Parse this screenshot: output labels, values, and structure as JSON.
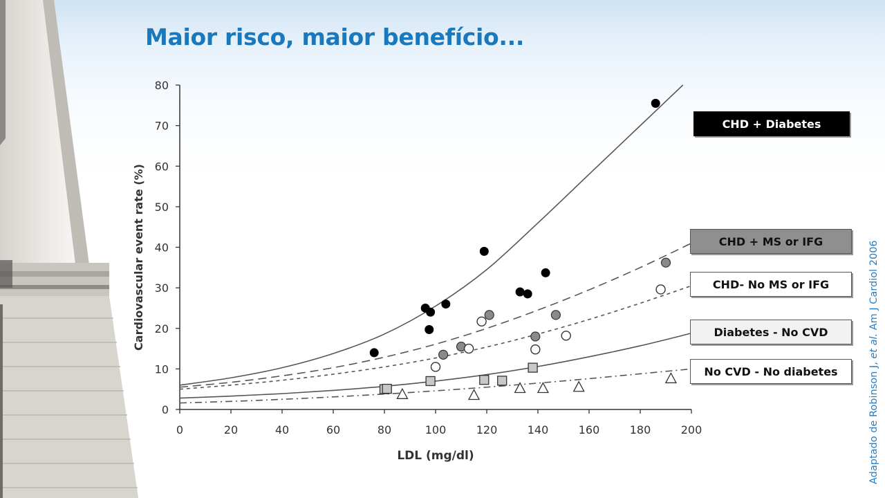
{
  "slide": {
    "title": "Maior risco, maior benefício...",
    "source_prefix": "Adaptado de Robinson J, ",
    "source_italic": "et al.",
    "source_suffix": "  Am J Cardiol 2006"
  },
  "chart_data": {
    "type": "scatter",
    "title": "",
    "xlabel": "LDL (mg/dl)",
    "ylabel": "Cardiovascular event rate (%)",
    "xlim": [
      0,
      200
    ],
    "ylim": [
      0,
      80
    ],
    "xticks": [
      0,
      20,
      40,
      60,
      80,
      100,
      120,
      140,
      160,
      180,
      200
    ],
    "yticks": [
      0,
      10,
      20,
      30,
      40,
      50,
      60,
      70,
      80
    ],
    "grid": false,
    "legend_position": "right",
    "series": [
      {
        "name": "CHD + Diabetes",
        "marker": "filled-circle",
        "color": "#000000",
        "line_style": "solid",
        "points": [
          [
            76,
            14
          ],
          [
            96,
            25
          ],
          [
            98,
            24
          ],
          [
            97.5,
            19.7
          ],
          [
            104,
            26
          ],
          [
            119,
            39
          ],
          [
            133,
            29
          ],
          [
            136,
            28.5
          ],
          [
            143,
            33.7
          ],
          [
            186,
            75.5
          ]
        ],
        "fit": [
          [
            0,
            6
          ],
          [
            20,
            7.8
          ],
          [
            40,
            10.3
          ],
          [
            60,
            13.8
          ],
          [
            80,
            18.6
          ],
          [
            100,
            25.5
          ],
          [
            120,
            34.5
          ],
          [
            140,
            46
          ],
          [
            160,
            58
          ],
          [
            180,
            70
          ],
          [
            200,
            82
          ]
        ]
      },
      {
        "name": "CHD + MS or IFG",
        "marker": "gray-circle",
        "color": "#8a8a8a",
        "line_style": "long-dash",
        "points": [
          [
            103,
            13.5
          ],
          [
            110,
            15.5
          ],
          [
            121,
            23.3
          ],
          [
            139,
            18
          ],
          [
            147,
            23.3
          ],
          [
            190,
            36.2
          ]
        ],
        "fit": [
          [
            0,
            5.5
          ],
          [
            20,
            6.7
          ],
          [
            40,
            8.3
          ],
          [
            60,
            10.3
          ],
          [
            80,
            12.9
          ],
          [
            100,
            16.1
          ],
          [
            120,
            20
          ],
          [
            140,
            24.5
          ],
          [
            160,
            29.5
          ],
          [
            180,
            35
          ],
          [
            200,
            41
          ]
        ]
      },
      {
        "name": "CHD- No MS or IFG",
        "marker": "open-circle",
        "color": "#ffffff",
        "line_style": "short-dash",
        "points": [
          [
            100,
            10.5
          ],
          [
            113,
            15
          ],
          [
            118,
            21.7
          ],
          [
            139,
            14.8
          ],
          [
            151,
            18.2
          ],
          [
            188,
            29.6
          ]
        ],
        "fit": [
          [
            0,
            5
          ],
          [
            20,
            6
          ],
          [
            40,
            7.2
          ],
          [
            60,
            8.7
          ],
          [
            80,
            10.5
          ],
          [
            100,
            12.7
          ],
          [
            120,
            15.4
          ],
          [
            140,
            18.6
          ],
          [
            160,
            22.2
          ],
          [
            180,
            26.2
          ],
          [
            200,
            30.5
          ]
        ]
      },
      {
        "name": "Diabetes - No CVD",
        "marker": "gray-square",
        "color": "#c8c8c8",
        "line_style": "solid",
        "points": [
          [
            80,
            5
          ],
          [
            81,
            5.1
          ],
          [
            98,
            7
          ],
          [
            119,
            7.3
          ],
          [
            126,
            7.1
          ],
          [
            138,
            10.3
          ]
        ],
        "fit": [
          [
            0,
            2.8
          ],
          [
            20,
            3.3
          ],
          [
            40,
            3.9
          ],
          [
            60,
            4.7
          ],
          [
            80,
            5.7
          ],
          [
            100,
            7
          ],
          [
            120,
            8.6
          ],
          [
            140,
            10.6
          ],
          [
            160,
            13
          ],
          [
            180,
            15.7
          ],
          [
            200,
            18.8
          ]
        ]
      },
      {
        "name": "No CVD - No diabetes",
        "marker": "open-triangle",
        "color": "#ffffff",
        "line_style": "dash-dot",
        "points": [
          [
            87,
            3.7
          ],
          [
            115,
            3.5
          ],
          [
            133,
            5.2
          ],
          [
            142,
            5.2
          ],
          [
            156,
            5.5
          ],
          [
            192,
            7.6
          ]
        ],
        "fit": [
          [
            0,
            1.6
          ],
          [
            20,
            2
          ],
          [
            40,
            2.5
          ],
          [
            60,
            3.1
          ],
          [
            80,
            3.8
          ],
          [
            100,
            4.6
          ],
          [
            120,
            5.5
          ],
          [
            140,
            6.5
          ],
          [
            160,
            7.6
          ],
          [
            180,
            8.8
          ],
          [
            200,
            10
          ]
        ]
      }
    ]
  }
}
